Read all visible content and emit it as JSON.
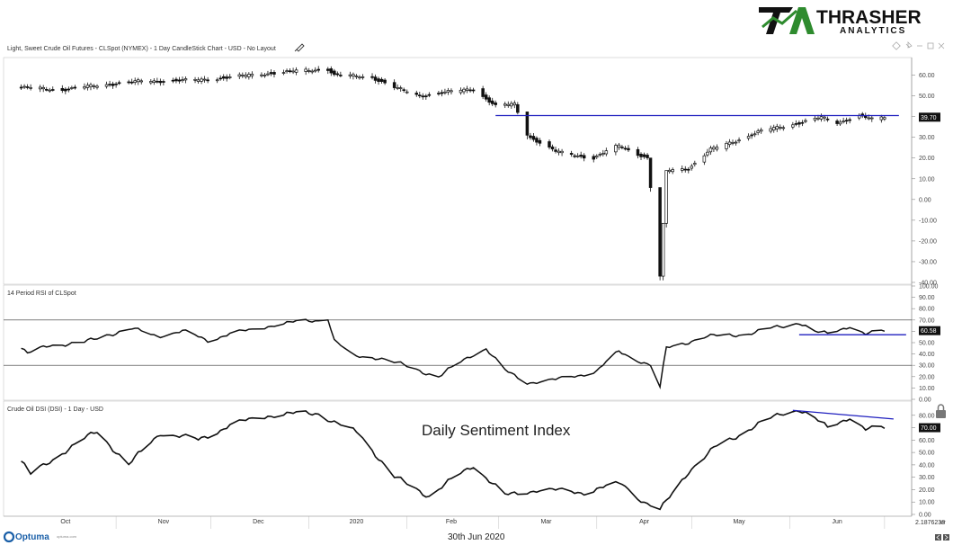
{
  "brand": {
    "name": "THRASHER",
    "sub": "ANALYTICS",
    "accent": "#2e8b2e",
    "dark": "#111111"
  },
  "footer": {
    "vendor": "Optuma",
    "vendor_small": "optuma.com",
    "date": "30th Jun 2020",
    "corner_value": "2.1876238",
    "corner_tag": "XY"
  },
  "colors": {
    "line": "#111111",
    "blue": "#1f1fbf",
    "grid": "#d9d9d9",
    "frame": "#999999",
    "label_bg": "#111111"
  },
  "chart_data": [
    {
      "panel": "price",
      "type": "candlestick",
      "title": "Light, Sweet Crude Oil Futures - CLSpot (NYMEX) - 1 Day CandleStick Chart - USD - No Layout",
      "ylim": [
        -40,
        65
      ],
      "yticks": [
        60,
        50,
        40,
        30,
        20,
        10,
        0,
        -10,
        -20,
        -30,
        -40
      ],
      "ytick_labels": [
        "60.00",
        "50.00",
        "40.00",
        "30.00",
        "20.00",
        "10.00",
        "0.00",
        "-10.00",
        "-20.00",
        "-30.00",
        "-40.00"
      ],
      "last_value": "39.70",
      "trendline": {
        "from": [
          "2020-02-28",
          40.5
        ],
        "to": [
          "2020-06-30",
          40.5
        ]
      },
      "anchors": [
        [
          "2019-10-01",
          54
        ],
        [
          "2019-10-14",
          53
        ],
        [
          "2019-10-28",
          55.5
        ],
        [
          "2019-11-08",
          57
        ],
        [
          "2019-11-25",
          57.5
        ],
        [
          "2019-12-06",
          59
        ],
        [
          "2019-12-19",
          61
        ],
        [
          "2020-01-06",
          63
        ],
        [
          "2020-01-08",
          60
        ],
        [
          "2020-01-20",
          59
        ],
        [
          "2020-01-27",
          54
        ],
        [
          "2020-02-04",
          50
        ],
        [
          "2020-02-14",
          52
        ],
        [
          "2020-02-21",
          53.5
        ],
        [
          "2020-02-28",
          45
        ],
        [
          "2020-03-05",
          46
        ],
        [
          "2020-03-09",
          31
        ],
        [
          "2020-03-18",
          23
        ],
        [
          "2020-03-30",
          20
        ],
        [
          "2020-04-07",
          26
        ],
        [
          "2020-04-16",
          20
        ],
        [
          "2020-04-20",
          -37
        ],
        [
          "2020-04-22",
          14
        ],
        [
          "2020-04-29",
          15
        ],
        [
          "2020-05-06",
          24
        ],
        [
          "2020-05-15",
          29
        ],
        [
          "2020-05-22",
          33
        ],
        [
          "2020-06-03",
          37
        ],
        [
          "2020-06-10",
          39.5
        ],
        [
          "2020-06-15",
          37
        ],
        [
          "2020-06-22",
          40.5
        ],
        [
          "2020-06-26",
          38.5
        ],
        [
          "2020-06-30",
          39.7
        ]
      ]
    },
    {
      "panel": "rsi",
      "type": "line",
      "title": "14 Period RSI of CLSpot",
      "ylim": [
        0,
        100
      ],
      "yticks": [
        100,
        90,
        80,
        70,
        60,
        50,
        40,
        30,
        20,
        10,
        0
      ],
      "ytick_labels": [
        "100.00",
        "90.00",
        "80.00",
        "70.00",
        "60.00",
        "50.00",
        "40.00",
        "30.00",
        "20.00",
        "10.00",
        "0.00"
      ],
      "reference_lines": [
        70,
        30
      ],
      "last_value": "60.58",
      "trendline": {
        "from": [
          "2020-06-03",
          57
        ],
        "to": [
          "2020-06-30",
          57
        ]
      },
      "anchors": [
        [
          "2019-10-01",
          45
        ],
        [
          "2019-10-03",
          40
        ],
        [
          "2019-10-10",
          48
        ],
        [
          "2019-10-21",
          50
        ],
        [
          "2019-10-28",
          57
        ],
        [
          "2019-11-05",
          62
        ],
        [
          "2019-11-13",
          56
        ],
        [
          "2019-11-21",
          60
        ],
        [
          "2019-11-29",
          52
        ],
        [
          "2019-12-06",
          58
        ],
        [
          "2019-12-13",
          61
        ],
        [
          "2019-12-20",
          66
        ],
        [
          "2020-01-03",
          70
        ],
        [
          "2020-01-06",
          72
        ],
        [
          "2020-01-08",
          52
        ],
        [
          "2020-01-14",
          38
        ],
        [
          "2020-01-22",
          37
        ],
        [
          "2020-01-31",
          29
        ],
        [
          "2020-02-10",
          20
        ],
        [
          "2020-02-21",
          40
        ],
        [
          "2020-02-25",
          45
        ],
        [
          "2020-03-02",
          25
        ],
        [
          "2020-03-09",
          15
        ],
        [
          "2020-03-18",
          17
        ],
        [
          "2020-03-31",
          25
        ],
        [
          "2020-04-07",
          42
        ],
        [
          "2020-04-17",
          30
        ],
        [
          "2020-04-20",
          10
        ],
        [
          "2020-04-22",
          45
        ],
        [
          "2020-05-04",
          55
        ],
        [
          "2020-05-18",
          58
        ],
        [
          "2020-06-03",
          68
        ],
        [
          "2020-06-08",
          59
        ],
        [
          "2020-06-12",
          58
        ],
        [
          "2020-06-19",
          65
        ],
        [
          "2020-06-24",
          57
        ],
        [
          "2020-06-30",
          60.58
        ]
      ]
    },
    {
      "panel": "dsi",
      "type": "line",
      "title": "Crude Oil DSI (DSI) - 1 Day - USD",
      "annotation": "Daily Sentiment Index",
      "ylim": [
        0,
        90
      ],
      "yticks": [
        80,
        70,
        60,
        50,
        40,
        30,
        20,
        10,
        0
      ],
      "ytick_labels": [
        "80.00",
        "70.00",
        "60.00",
        "50.00",
        "40.00",
        "30.00",
        "20.00",
        "10.00",
        "0.00"
      ],
      "last_value": "70.00",
      "trendline": {
        "from": [
          "2020-06-01",
          84
        ],
        "to": [
          "2020-06-30",
          77
        ]
      },
      "anchors": [
        [
          "2019-10-01",
          43
        ],
        [
          "2019-10-04",
          32
        ],
        [
          "2019-10-14",
          50
        ],
        [
          "2019-10-25",
          67
        ],
        [
          "2019-11-04",
          40
        ],
        [
          "2019-11-14",
          66
        ],
        [
          "2019-11-26",
          60
        ],
        [
          "2019-12-06",
          72
        ],
        [
          "2019-12-18",
          80
        ],
        [
          "2020-01-03",
          82
        ],
        [
          "2020-01-09",
          73
        ],
        [
          "2020-01-16",
          65
        ],
        [
          "2020-01-27",
          30
        ],
        [
          "2020-02-07",
          15
        ],
        [
          "2020-02-21",
          40
        ],
        [
          "2020-03-02",
          15
        ],
        [
          "2020-03-12",
          20
        ],
        [
          "2020-03-27",
          18
        ],
        [
          "2020-04-08",
          25
        ],
        [
          "2020-04-15",
          10
        ],
        [
          "2020-04-20",
          3
        ],
        [
          "2020-04-29",
          35
        ],
        [
          "2020-05-08",
          55
        ],
        [
          "2020-05-19",
          70
        ],
        [
          "2020-05-29",
          82
        ],
        [
          "2020-06-03",
          85
        ],
        [
          "2020-06-12",
          70
        ],
        [
          "2020-06-19",
          79
        ],
        [
          "2020-06-24",
          68
        ],
        [
          "2020-06-30",
          70
        ]
      ]
    }
  ],
  "x_axis": {
    "start": "2019-09-26",
    "end": "2020-07-08",
    "months": [
      {
        "label": "Oct",
        "date": "2019-10-15"
      },
      {
        "label": "Nov",
        "date": "2019-11-15"
      },
      {
        "label": "Dec",
        "date": "2019-12-15"
      },
      {
        "label": "2020",
        "date": "2020-01-15"
      },
      {
        "label": "Feb",
        "date": "2020-02-14"
      },
      {
        "label": "Mar",
        "date": "2020-03-15"
      },
      {
        "label": "Apr",
        "date": "2020-04-15"
      },
      {
        "label": "May",
        "date": "2020-05-15"
      },
      {
        "label": "Jun",
        "date": "2020-06-15"
      }
    ],
    "separators": [
      "2019-10-31",
      "2019-11-30",
      "2019-12-31",
      "2020-01-31",
      "2020-02-29",
      "2020-03-31",
      "2020-04-30",
      "2020-05-31",
      "2020-06-30"
    ]
  }
}
